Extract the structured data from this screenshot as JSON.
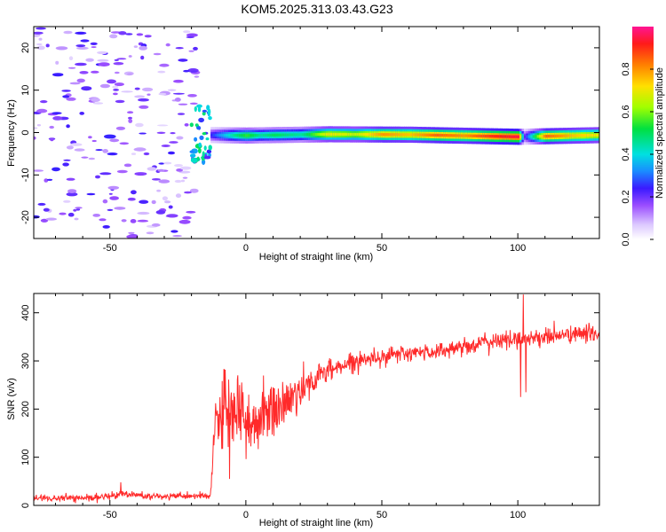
{
  "title": "KOM5.2025.313.03.43.G23",
  "chart_data": [
    {
      "type": "heatmap",
      "xlabel": "Height of straight line (km)",
      "ylabel": "Frequency (Hz)",
      "xlim": [
        -78,
        130
      ],
      "ylim": [
        -25,
        25
      ],
      "xticks": [
        -50,
        0,
        50,
        100
      ],
      "yticks": [
        -20,
        -10,
        0,
        10,
        20
      ],
      "colorbar": {
        "label": "Normalized spectral amplitude",
        "range": [
          0,
          1
        ],
        "ticks": [
          0.0,
          0.2,
          0.4,
          0.6,
          0.8
        ],
        "colors": [
          "#ffffff",
          "#dcc8ff",
          "#9a4dff",
          "#3a1aff",
          "#1a8cff",
          "#00e0e0",
          "#00e040",
          "#a0ff00",
          "#ffe000",
          "#ff8000",
          "#ff1a1a",
          "#ff1493"
        ]
      },
      "noise_region": {
        "x": [
          -78,
          -18
        ],
        "freq": [
          -25,
          25
        ],
        "amplitude": [
          0.05,
          0.25
        ]
      },
      "transition_region": {
        "x": [
          -20,
          -13
        ],
        "freq": [
          -7,
          7
        ],
        "amplitude": [
          0.15,
          0.5
        ]
      },
      "signal_band": {
        "x": [
          -13,
          130
        ],
        "center_freq": [
          {
            "x": -13,
            "f": -0.6
          },
          {
            "x": 0,
            "f": -0.7
          },
          {
            "x": 30,
            "f": -0.4
          },
          {
            "x": 60,
            "f": -0.5
          },
          {
            "x": 100,
            "f": -1.0
          },
          {
            "x": 130,
            "f": -0.6
          }
        ],
        "amplitude": [
          {
            "x": -13,
            "a": 0.25
          },
          {
            "x": -5,
            "a": 0.45
          },
          {
            "x": 0,
            "a": 0.55
          },
          {
            "x": 5,
            "a": 0.45
          },
          {
            "x": 10,
            "a": 0.5
          },
          {
            "x": 20,
            "a": 0.45
          },
          {
            "x": 30,
            "a": 0.7
          },
          {
            "x": 40,
            "a": 0.65
          },
          {
            "x": 50,
            "a": 0.8
          },
          {
            "x": 60,
            "a": 0.75
          },
          {
            "x": 70,
            "a": 0.85
          },
          {
            "x": 80,
            "a": 0.8
          },
          {
            "x": 90,
            "a": 0.9
          },
          {
            "x": 100,
            "a": 0.95
          },
          {
            "x": 102,
            "a": 0.2
          },
          {
            "x": 110,
            "a": 0.85
          },
          {
            "x": 120,
            "a": 0.75
          },
          {
            "x": 130,
            "a": 0.7
          }
        ]
      }
    },
    {
      "type": "line",
      "xlabel": "Height of straight line (km)",
      "ylabel": "SNR (v/v)",
      "xlim": [
        -78,
        130
      ],
      "ylim": [
        0,
        440
      ],
      "xticks": [
        -50,
        0,
        50,
        100
      ],
      "yticks": [
        0,
        100,
        200,
        300,
        400
      ],
      "color": "#ff2a2a",
      "trend": [
        {
          "x": -78,
          "y": 15
        },
        {
          "x": -55,
          "y": 15
        },
        {
          "x": -45,
          "y": 25
        },
        {
          "x": -35,
          "y": 18
        },
        {
          "x": -13,
          "y": 20
        },
        {
          "x": -11,
          "y": 180
        },
        {
          "x": -5,
          "y": 200
        },
        {
          "x": 0,
          "y": 160
        },
        {
          "x": 5,
          "y": 185
        },
        {
          "x": 10,
          "y": 195
        },
        {
          "x": 15,
          "y": 215
        },
        {
          "x": 20,
          "y": 240
        },
        {
          "x": 30,
          "y": 280
        },
        {
          "x": 40,
          "y": 300
        },
        {
          "x": 50,
          "y": 310
        },
        {
          "x": 60,
          "y": 315
        },
        {
          "x": 70,
          "y": 320
        },
        {
          "x": 80,
          "y": 330
        },
        {
          "x": 90,
          "y": 340
        },
        {
          "x": 100,
          "y": 345
        },
        {
          "x": 110,
          "y": 350
        },
        {
          "x": 120,
          "y": 355
        },
        {
          "x": 130,
          "y": 358
        }
      ],
      "noise_amplitude": [
        {
          "x": -78,
          "n": 6
        },
        {
          "x": -13,
          "n": 6
        },
        {
          "x": -11,
          "n": 60
        },
        {
          "x": 5,
          "n": 55
        },
        {
          "x": 15,
          "n": 45
        },
        {
          "x": 25,
          "n": 25
        },
        {
          "x": 35,
          "n": 15
        },
        {
          "x": 130,
          "n": 15
        }
      ],
      "spikes": [
        {
          "x": -46,
          "y": 48
        },
        {
          "x": -8,
          "y": 282
        },
        {
          "x": -6,
          "y": 55
        },
        {
          "x": -3,
          "y": 270
        },
        {
          "x": 101,
          "y": 225
        },
        {
          "x": 102,
          "y": 438
        },
        {
          "x": 103,
          "y": 235
        }
      ]
    }
  ]
}
